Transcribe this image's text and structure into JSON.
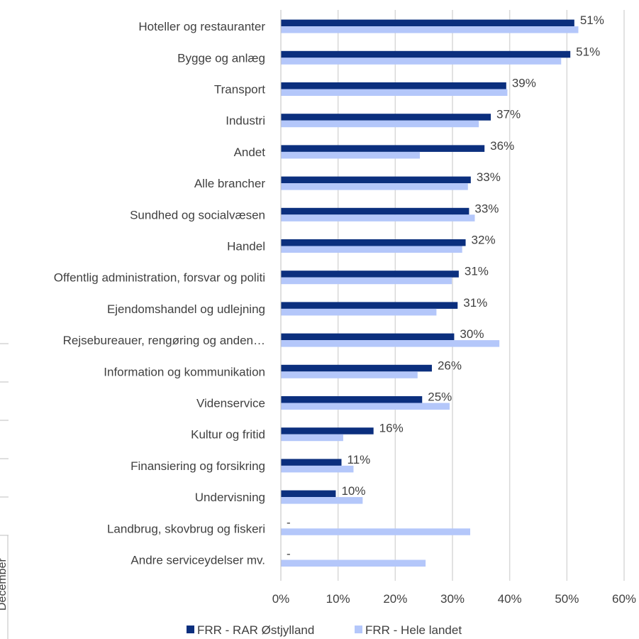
{
  "chart_data": {
    "type": "bar",
    "orientation": "horizontal",
    "categories": [
      "Hoteller og restauranter",
      "Bygge og anlæg",
      "Transport",
      "Industri",
      "Andet",
      "Alle brancher",
      "Sundhed og socialvæsen",
      "Handel",
      "Offentlig administration, forsvar og politi",
      "Ejendomshandel og udlejning",
      "Rejsebureauer, rengøring og anden…",
      "Information og kommunikation",
      "Videnservice",
      "Kultur og fritid",
      "Finansiering og forsikring",
      "Undervisning",
      "Landbrug, skovbrug og fiskeri",
      "Andre serviceydelser mv."
    ],
    "series": [
      {
        "name": "FRR - RAR Østjylland",
        "color": "#0b2f7e",
        "values": [
          51.3,
          50.6,
          39.4,
          36.7,
          35.6,
          33.2,
          32.9,
          32.3,
          31.1,
          30.9,
          30.3,
          26.4,
          24.7,
          16.2,
          10.6,
          9.6,
          null,
          null
        ],
        "labels": [
          "51%",
          "51%",
          "39%",
          "37%",
          "36%",
          "33%",
          "33%",
          "32%",
          "31%",
          "31%",
          "30%",
          "26%",
          "25%",
          "16%",
          "11%",
          "10%",
          "-",
          "-"
        ]
      },
      {
        "name": "FRR - Hele landet",
        "color": "#b4c7fa",
        "values": [
          52.0,
          49.0,
          39.6,
          34.6,
          24.3,
          32.7,
          33.9,
          31.7,
          29.9,
          27.2,
          38.2,
          23.9,
          29.5,
          10.9,
          12.7,
          14.3,
          33.1,
          25.3
        ]
      }
    ],
    "xlim": [
      0,
      60
    ],
    "xticks": [
      "0%",
      "10%",
      "20%",
      "30%",
      "40%",
      "50%",
      "60%"
    ],
    "grid": true,
    "legend_position": "bottom"
  },
  "side_fragment": {
    "text": "December"
  }
}
